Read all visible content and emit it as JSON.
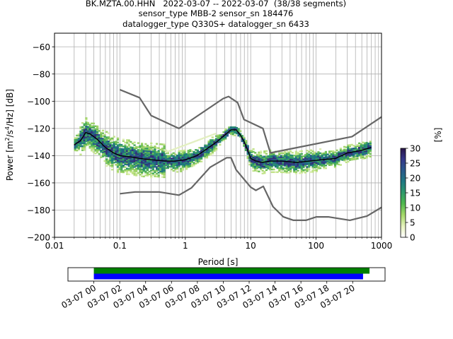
{
  "chart_data": [
    {
      "type": "heatmap",
      "title_lines": [
        "BK.MZTA.00.HHN   2022-03-07 -- 2022-03-07  (38/38 segments)",
        "sensor_type MBB-2 sensor_sn 184476",
        "datalogger_type Q330S+ datalogger_sn 6433"
      ],
      "xlabel": "Period [s]",
      "ylabel_parts": [
        "Power [m",
        "2",
        "/s",
        "4",
        "/Hz] [dB]"
      ],
      "xscale": "log",
      "xlim": [
        0.01,
        1000
      ],
      "ylim": [
        -200,
        -50
      ],
      "x_ticks": [
        0.01,
        0.1,
        1,
        10,
        100,
        1000
      ],
      "x_tick_labels": [
        "0.01",
        "0.1",
        "1",
        "10",
        "100",
        "1000"
      ],
      "y_ticks": [
        -200,
        -180,
        -160,
        -140,
        -120,
        -100,
        -80,
        -60
      ],
      "y_tick_labels": [
        "−200",
        "−180",
        "−160",
        "−140",
        "−120",
        "−100",
        "−80",
        "−60"
      ],
      "grid": true,
      "colorbar": {
        "label": "[%]",
        "min": 0,
        "max": 30,
        "ticks": [
          0,
          5,
          10,
          15,
          20,
          25,
          30
        ],
        "tick_labels": [
          "0",
          "5",
          "10",
          "15",
          "20",
          "25",
          "30"
        ]
      },
      "period_range": [
        0.02,
        700
      ],
      "mode_curve": {
        "x": [
          0.02,
          0.025,
          0.03,
          0.035,
          0.045,
          0.06,
          0.08,
          0.1,
          0.15,
          0.2,
          0.3,
          0.5,
          0.7,
          1,
          1.5,
          2,
          3,
          4,
          5,
          6,
          7,
          8,
          9,
          10,
          12,
          15,
          20,
          30,
          50,
          80,
          120,
          200,
          300,
          400,
          500,
          700
        ],
        "y": [
          -132,
          -129,
          -123,
          -124,
          -128,
          -134,
          -138,
          -140,
          -141,
          -142,
          -143,
          -144,
          -144,
          -143,
          -140,
          -136,
          -130,
          -125,
          -121,
          -121,
          -125,
          -130,
          -136,
          -142,
          -144,
          -145,
          -144,
          -144,
          -145,
          -144,
          -143,
          -142,
          -138,
          -137,
          -136,
          -134
        ]
      },
      "model_curves": [
        {
          "x": [
            0.1,
            0.2,
            0.3,
            0.8,
            3.8,
            4.6,
            6.3,
            7.9,
            15.4,
            20,
            354.8,
            1000
          ],
          "y": [
            -91.5,
            -97.4,
            -110.5,
            -120,
            -98,
            -96.5,
            -101,
            -113.5,
            -120,
            -138,
            -126,
            -111.5
          ]
        },
        {
          "x": [
            0.1,
            0.17,
            0.4,
            0.8,
            1.24,
            2.4,
            4.3,
            5,
            6,
            10,
            12,
            15.6,
            21.9,
            31.6,
            45,
            70,
            101,
            154,
            328,
            600,
            1000
          ],
          "y": [
            -168,
            -166.7,
            -166.7,
            -169,
            -163.7,
            -148.5,
            -141.5,
            -141.5,
            -150.5,
            -163.2,
            -165.5,
            -162.5,
            -177.5,
            -185,
            -187.5,
            -187.5,
            -185,
            -185,
            -187.5,
            -184.4,
            -178
          ]
        }
      ]
    },
    {
      "type": "timeline",
      "x_tick_labels": [
        "03-07 00",
        "03-07 02",
        "03-07 04",
        "03-07 06",
        "03-07 08",
        "03-07 10",
        "03-07 12",
        "03-07 14",
        "03-07 16",
        "03-07 18",
        "03-07 20"
      ],
      "x_ticks_hours": [
        0,
        2,
        4,
        6,
        8,
        10,
        12,
        14,
        16,
        18,
        20
      ],
      "xlim_hours": [
        -2.0,
        22.5
      ],
      "bars": [
        {
          "color": "#008000",
          "start_hours": 0,
          "end_hours": 21.3
        },
        {
          "color": "#0000ff",
          "start_hours": 0,
          "end_hours": 20.8
        }
      ]
    }
  ]
}
